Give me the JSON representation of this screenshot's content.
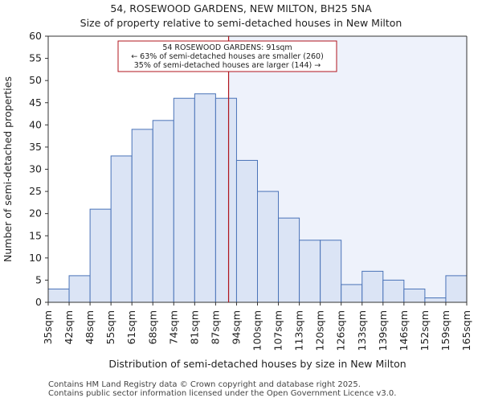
{
  "header": {
    "title_line1": "54, ROSEWOOD GARDENS, NEW MILTON, BH25 5NA",
    "title_line2": "Size of property relative to semi-detached houses in New Milton"
  },
  "footer": {
    "line1": "Contains HM Land Registry data © Crown copyright and database right 2025.",
    "line2": "Contains public sector information licensed under the Open Government Licence v3.0."
  },
  "chart_data": {
    "type": "bar",
    "title": "Size of property relative to semi-detached houses in New Milton",
    "xlabel": "Distribution of semi-detached houses by size in New Milton",
    "ylabel": "Number of semi-detached properties",
    "ylim": [
      0,
      60
    ],
    "yticks": [
      0,
      5,
      10,
      15,
      20,
      25,
      30,
      35,
      40,
      45,
      50,
      55,
      60
    ],
    "bin_edges_labels": [
      "35sqm",
      "42sqm",
      "48sqm",
      "55sqm",
      "61sqm",
      "68sqm",
      "74sqm",
      "81sqm",
      "87sqm",
      "94sqm",
      "100sqm",
      "107sqm",
      "113sqm",
      "120sqm",
      "126sqm",
      "133sqm",
      "139sqm",
      "146sqm",
      "152sqm",
      "159sqm",
      "165sqm"
    ],
    "values": [
      3,
      6,
      21,
      33,
      39,
      41,
      46,
      47,
      46,
      32,
      25,
      19,
      14,
      14,
      4,
      7,
      5,
      3,
      1,
      6
    ],
    "marker": {
      "value_sqm": 91,
      "bin_position": 8.62,
      "line1": "54 ROSEWOOD GARDENS: 91sqm",
      "line2": "← 63% of semi-detached houses are smaller (260)",
      "line3": "35% of semi-detached houses are larger (144) →"
    },
    "colors": {
      "bar_fill": "#dbe4f5",
      "bar_stroke": "#4a73b8",
      "marker": "#b0141c",
      "highlight_bg": "#eef2fb"
    }
  }
}
